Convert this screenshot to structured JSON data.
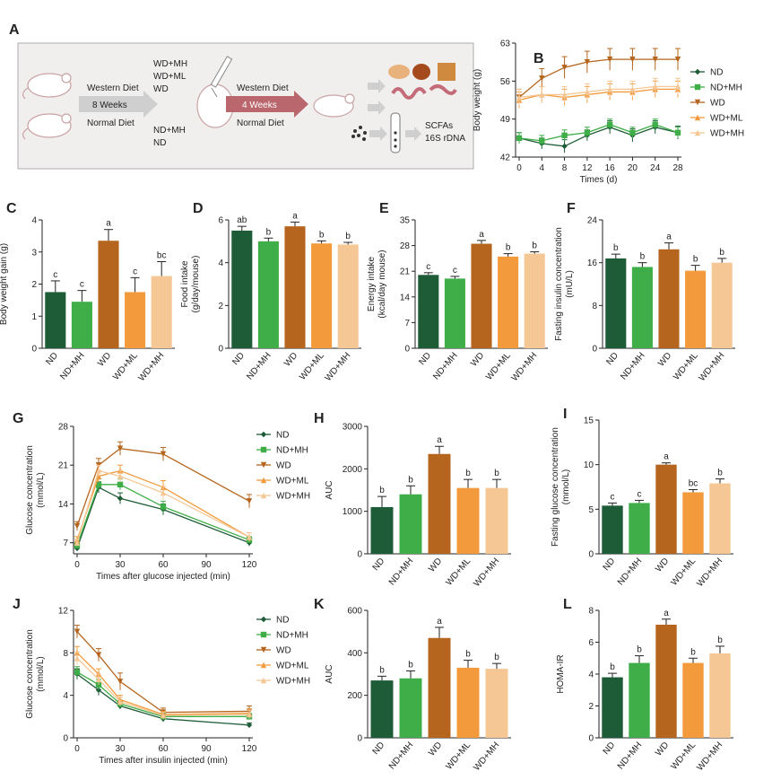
{
  "colors": {
    "ND": "#1e5c37",
    "ND+MH": "#3fae49",
    "WD": "#b5651d",
    "WD+ML": "#f39a3d",
    "WD+MH": "#f5c795",
    "text": "#222222",
    "schematic_bg": "#f1eeee",
    "arrow_gray": "#cfcfcf",
    "arrow_red": "#b9676d"
  },
  "legend": [
    "ND",
    "ND+MH",
    "WD",
    "WD+ML",
    "WD+MH"
  ],
  "schematic": {
    "label": "A",
    "western_diet": "Western Diet",
    "normal_diet": "Normal Diet",
    "weeks1": "8 Weeks",
    "weeks2": "4 Weeks",
    "groups_wd": [
      "WD+MH",
      "WD+ML",
      "WD"
    ],
    "groups_nd": [
      "ND+MH",
      "ND"
    ],
    "western_diet2": "Western Diet",
    "normal_diet2": "Normal Diet",
    "outputs": [
      "SCFAs",
      "16S rDNA"
    ]
  },
  "chart_data": [
    {
      "panel": "B",
      "type": "line",
      "xlabel": "Times (d)",
      "ylabel": "Body weight (g)",
      "x": [
        0,
        4,
        8,
        12,
        16,
        20,
        24,
        28
      ],
      "xticks": [
        "0",
        "4",
        "8",
        "12",
        "16",
        "20",
        "24",
        "28"
      ],
      "ylim": [
        42,
        63
      ],
      "yticks": [
        42,
        49,
        56,
        63
      ],
      "series": [
        {
          "name": "ND",
          "values": [
            45.5,
            44.5,
            44.0,
            46.0,
            47.5,
            46.0,
            47.5,
            46.5
          ],
          "err": [
            1.0,
            1.0,
            1.2,
            1.0,
            1.2,
            1.2,
            1.2,
            1.2
          ]
        },
        {
          "name": "ND+MH",
          "values": [
            45.5,
            45.0,
            46.0,
            46.5,
            48.0,
            46.5,
            48.0,
            46.5
          ],
          "err": [
            1.0,
            1.0,
            1.0,
            1.0,
            1.0,
            1.0,
            1.0,
            1.0
          ]
        },
        {
          "name": "WD",
          "values": [
            53.0,
            56.5,
            58.5,
            59.5,
            60.0,
            60.0,
            60.0,
            60.0
          ],
          "err": [
            1.5,
            1.8,
            2.0,
            2.0,
            2.0,
            2.0,
            2.0,
            2.0
          ]
        },
        {
          "name": "WD+ML",
          "values": [
            52.5,
            53.5,
            53.0,
            53.5,
            54.0,
            54.0,
            54.5,
            54.5
          ],
          "err": [
            1.5,
            1.5,
            1.5,
            1.5,
            1.5,
            1.5,
            1.5,
            1.5
          ]
        },
        {
          "name": "WD+MH",
          "values": [
            53.0,
            53.5,
            53.5,
            54.0,
            54.5,
            54.5,
            55.0,
            55.0
          ],
          "err": [
            1.5,
            1.5,
            1.5,
            1.5,
            1.5,
            1.5,
            1.5,
            1.5
          ]
        }
      ]
    },
    {
      "panel": "C",
      "type": "bar",
      "ylabel": "Body weight gain (g)",
      "categories": [
        "ND",
        "ND+MH",
        "WD",
        "WD+ML",
        "WD+MH"
      ],
      "values": [
        1.75,
        1.45,
        3.35,
        1.75,
        2.25
      ],
      "err": [
        0.35,
        0.35,
        0.35,
        0.45,
        0.45
      ],
      "letters": [
        "c",
        "c",
        "a",
        "c",
        "bc"
      ],
      "ylim": [
        0,
        4
      ],
      "yticks": [
        0,
        1,
        2,
        3,
        4
      ]
    },
    {
      "panel": "D",
      "type": "bar",
      "ylabel": "Food intake (g/day/mouse)",
      "categories": [
        "ND",
        "ND+MH",
        "WD",
        "WD+ML",
        "WD+MH"
      ],
      "values": [
        5.5,
        5.0,
        5.7,
        4.9,
        4.85
      ],
      "err": [
        0.2,
        0.15,
        0.2,
        0.12,
        0.1
      ],
      "letters": [
        "ab",
        "b",
        "a",
        "b",
        "b"
      ],
      "ylim": [
        0,
        6
      ],
      "yticks": [
        0,
        2,
        4,
        6
      ]
    },
    {
      "panel": "E",
      "type": "bar",
      "ylabel": "Energy intake (kcal/day mouse)",
      "categories": [
        "ND",
        "ND+MH",
        "WD",
        "WD+ML",
        "WD+MH"
      ],
      "values": [
        20.0,
        19.0,
        28.5,
        25.0,
        25.8
      ],
      "err": [
        0.6,
        0.6,
        0.9,
        0.8,
        0.5
      ],
      "letters": [
        "c",
        "c",
        "a",
        "b",
        "b"
      ],
      "ylim": [
        0,
        35
      ],
      "yticks": [
        0,
        7,
        14,
        21,
        28,
        35
      ]
    },
    {
      "panel": "F",
      "type": "bar",
      "ylabel": "Fasting insulin concentration (mU/L)",
      "categories": [
        "ND",
        "ND+MH",
        "WD",
        "WD+ML",
        "WD+MH"
      ],
      "values": [
        16.8,
        15.2,
        18.5,
        14.5,
        16.0
      ],
      "err": [
        0.8,
        0.8,
        1.2,
        1.0,
        0.8
      ],
      "letters": [
        "b",
        "b",
        "a",
        "b",
        "b"
      ],
      "ylim": [
        0,
        24
      ],
      "yticks": [
        0,
        8,
        16,
        24
      ]
    },
    {
      "panel": "G",
      "type": "line",
      "xlabel": "Times after glucose injected (min)",
      "ylabel": "Glucose concentration (mmol/L)",
      "x": [
        0,
        15,
        30,
        60,
        120
      ],
      "xticks": [
        "0",
        "30",
        "60",
        "90",
        "120"
      ],
      "xtickvals": [
        0,
        30,
        60,
        90,
        120
      ],
      "ylim": [
        5,
        28
      ],
      "yticks": [
        7,
        14,
        21,
        28
      ],
      "series": [
        {
          "name": "ND",
          "values": [
            6.0,
            17.0,
            15.0,
            13.0,
            7.0
          ],
          "err": [
            0.5,
            1.0,
            1.0,
            1.0,
            0.6
          ]
        },
        {
          "name": "ND+MH",
          "values": [
            6.5,
            17.5,
            17.5,
            13.5,
            7.5
          ],
          "err": [
            0.5,
            1.0,
            1.0,
            1.0,
            0.6
          ]
        },
        {
          "name": "WD",
          "values": [
            10.0,
            21.0,
            24.0,
            23.0,
            14.5
          ],
          "err": [
            0.8,
            1.2,
            1.2,
            1.2,
            1.2
          ]
        },
        {
          "name": "WD+ML",
          "values": [
            7.5,
            19.0,
            20.0,
            17.0,
            8.0
          ],
          "err": [
            0.6,
            1.0,
            1.0,
            1.2,
            0.8
          ]
        },
        {
          "name": "WD+MH",
          "values": [
            7.0,
            20.0,
            19.0,
            16.0,
            8.0
          ],
          "err": [
            0.6,
            1.0,
            1.0,
            1.2,
            0.8
          ]
        }
      ]
    },
    {
      "panel": "H",
      "type": "bar",
      "ylabel": "AUC",
      "categories": [
        "ND",
        "ND+MH",
        "WD",
        "WD+ML",
        "WD+MH"
      ],
      "values": [
        1100,
        1400,
        2350,
        1550,
        1550
      ],
      "err": [
        250,
        200,
        180,
        200,
        200
      ],
      "letters": [
        "b",
        "b",
        "a",
        "b",
        "b"
      ],
      "ylim": [
        0,
        3000
      ],
      "yticks": [
        0,
        1000,
        2000,
        3000
      ]
    },
    {
      "panel": "I",
      "type": "bar",
      "ylabel": "Fasting glucose concentration (mmol/L)",
      "categories": [
        "ND",
        "ND+MH",
        "WD",
        "WD+ML",
        "WD+MH"
      ],
      "values": [
        5.4,
        5.7,
        10.0,
        6.9,
        7.9
      ],
      "err": [
        0.3,
        0.3,
        0.2,
        0.3,
        0.5
      ],
      "letters": [
        "c",
        "c",
        "a",
        "bc",
        "b"
      ],
      "ylim": [
        0,
        15
      ],
      "yticks": [
        0,
        5,
        10,
        15
      ]
    },
    {
      "panel": "J",
      "type": "line",
      "xlabel": "Times after insulin injected (min)",
      "ylabel": "Glucose concentration (mmol/L)",
      "x": [
        0,
        15,
        30,
        60,
        120
      ],
      "xticks": [
        "0",
        "30",
        "60",
        "90",
        "120"
      ],
      "xtickvals": [
        0,
        30,
        60,
        90,
        120
      ],
      "ylim": [
        0,
        12
      ],
      "yticks": [
        0,
        4,
        8,
        12
      ],
      "series": [
        {
          "name": "ND",
          "values": [
            6.0,
            4.5,
            3.0,
            1.8,
            1.2
          ],
          "err": [
            0.5,
            0.5,
            0.3,
            0.3,
            0.2
          ]
        },
        {
          "name": "ND+MH",
          "values": [
            6.2,
            5.0,
            3.2,
            2.0,
            2.0
          ],
          "err": [
            0.5,
            0.5,
            0.3,
            0.3,
            0.3
          ]
        },
        {
          "name": "WD",
          "values": [
            10.0,
            7.8,
            5.3,
            2.4,
            2.5
          ],
          "err": [
            0.6,
            0.6,
            0.8,
            0.4,
            0.5
          ]
        },
        {
          "name": "WD+ML",
          "values": [
            8.0,
            6.0,
            3.6,
            2.2,
            2.3
          ],
          "err": [
            0.6,
            0.5,
            0.4,
            0.3,
            0.4
          ]
        },
        {
          "name": "WD+MH",
          "values": [
            7.5,
            5.5,
            3.4,
            2.1,
            2.2
          ],
          "err": [
            0.6,
            0.5,
            0.4,
            0.3,
            0.4
          ]
        }
      ]
    },
    {
      "panel": "K",
      "type": "bar",
      "ylabel": "AUC",
      "categories": [
        "ND",
        "ND+MH",
        "WD",
        "WD+ML",
        "WD+MH"
      ],
      "values": [
        270,
        280,
        470,
        330,
        325
      ],
      "err": [
        20,
        35,
        50,
        35,
        25
      ],
      "letters": [
        "b",
        "b",
        "a",
        "b",
        "b"
      ],
      "ylim": [
        0,
        600
      ],
      "yticks": [
        0,
        200,
        400,
        600
      ]
    },
    {
      "panel": "L",
      "type": "bar",
      "ylabel": "HOMA-IR",
      "categories": [
        "ND",
        "ND+MH",
        "WD",
        "WD+ML",
        "WD+MH"
      ],
      "values": [
        3.8,
        4.7,
        7.1,
        4.7,
        5.3
      ],
      "err": [
        0.25,
        0.45,
        0.35,
        0.3,
        0.45
      ],
      "letters": [
        "b",
        "b",
        "a",
        "b",
        "b"
      ],
      "ylim": [
        0,
        8
      ],
      "yticks": [
        0,
        2,
        4,
        6,
        8
      ]
    }
  ]
}
